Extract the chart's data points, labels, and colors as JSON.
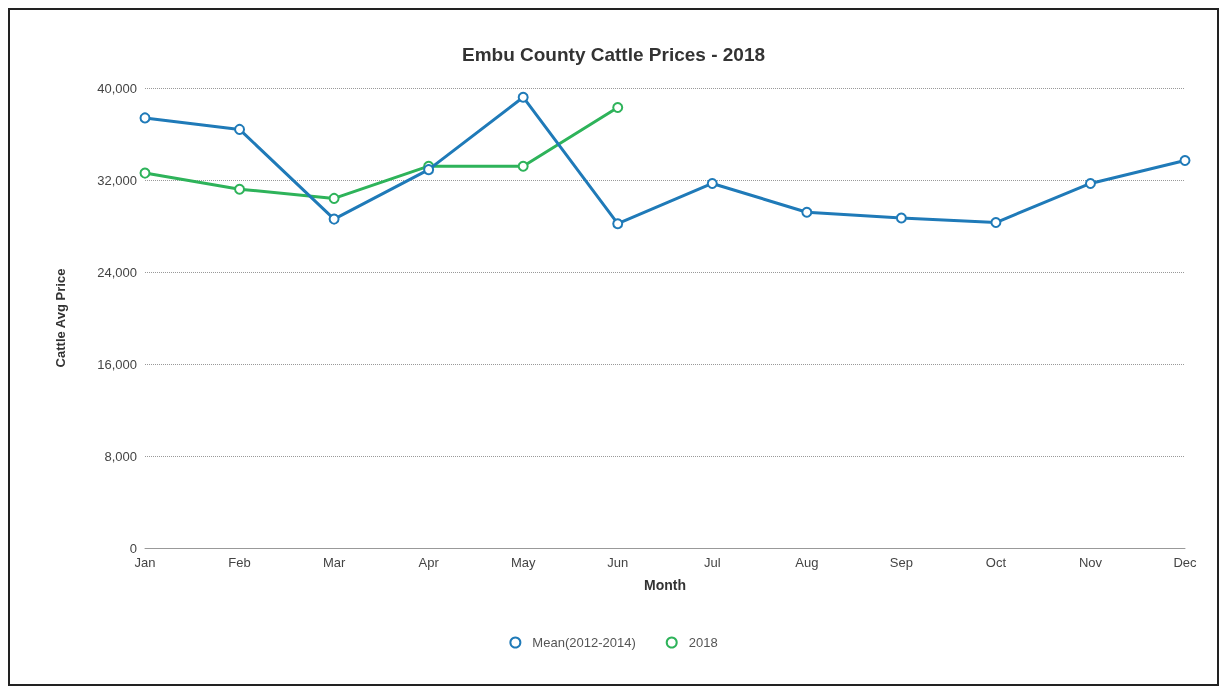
{
  "chart_data": {
    "type": "line",
    "title": "Embu County Cattle Prices - 2018",
    "xlabel": "Month",
    "ylabel": "Cattle Avg Price",
    "categories": [
      "Jan",
      "Feb",
      "Mar",
      "Apr",
      "May",
      "Jun",
      "Jul",
      "Aug",
      "Sep",
      "Oct",
      "Nov",
      "Dec"
    ],
    "series": [
      {
        "name": "Mean(2012-2014)",
        "color": "#1f7ab8",
        "values": [
          37400,
          36400,
          28600,
          32900,
          39200,
          28200,
          31700,
          29200,
          28700,
          28300,
          31700,
          33700
        ]
      },
      {
        "name": "2018",
        "color": "#2eb35a",
        "values": [
          32600,
          31200,
          30400,
          33200,
          33200,
          38300,
          null,
          null,
          null,
          null,
          null,
          null
        ]
      }
    ],
    "ylim": [
      0,
      40000
    ],
    "yticks": [
      {
        "value": 0,
        "label": "0"
      },
      {
        "value": 8000,
        "label": "8,000"
      },
      {
        "value": 16000,
        "label": "16,000"
      },
      {
        "value": 24000,
        "label": "24,000"
      },
      {
        "value": 32000,
        "label": "32,000"
      },
      {
        "value": 40000,
        "label": "40,000"
      }
    ],
    "grid": "y",
    "legend": "bottom",
    "marker": "circle",
    "line_style": "solid"
  }
}
